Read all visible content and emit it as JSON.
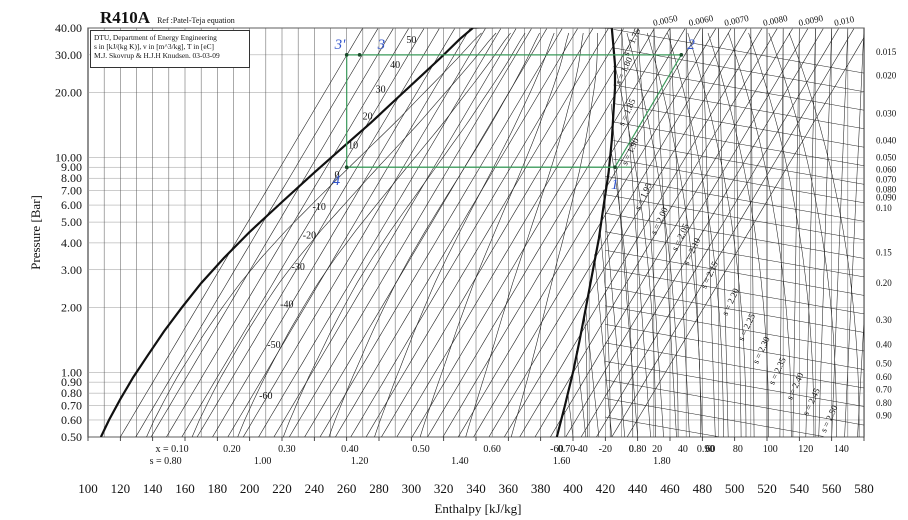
{
  "chart_data": {
    "type": "line",
    "title": "R410A",
    "subtitle": "Ref :Patel-Teja equation",
    "info_lines": [
      "DTU, Department of Energy Engineering",
      "s in [kJ/(kg K)], v in [m^3/kg], T in [eC]",
      "M.J. Skovrup & H.J.H Knudsen. 03-03-09"
    ],
    "xlabel": "Enthalpy [kJ/kg]",
    "ylabel": "Pressure [Bar]",
    "xlim": [
      100,
      580
    ],
    "ylim": [
      0.5,
      40
    ],
    "yscale": "log",
    "x_ticks": [
      100,
      120,
      140,
      160,
      180,
      200,
      220,
      240,
      260,
      280,
      300,
      320,
      340,
      360,
      380,
      400,
      420,
      440,
      460,
      480,
      500,
      520,
      540,
      560,
      580
    ],
    "y_ticks": [
      0.5,
      0.6,
      0.7,
      0.8,
      0.9,
      1.0,
      2.0,
      3.0,
      4.0,
      5.0,
      6.0,
      7.0,
      8.0,
      9.0,
      10.0,
      20.0,
      30.0,
      40.0
    ],
    "y_tick_labels": [
      "0.50",
      "0.60",
      "0.70",
      "0.80",
      "0.90",
      "1.00",
      "2.00",
      "3.00",
      "4.00",
      "5.00",
      "6.00",
      "7.00",
      "8.00",
      "9.00",
      "10.00",
      "20.00",
      "30.00",
      "40.00"
    ],
    "saturation_liquid": {
      "h": [
        108,
        113,
        120,
        128,
        137,
        147,
        158,
        170,
        184,
        200,
        220,
        240,
        258,
        275,
        290,
        305,
        318,
        330,
        338
      ],
      "p": [
        0.5,
        0.6,
        0.75,
        0.95,
        1.2,
        1.55,
        2.0,
        2.6,
        3.4,
        4.5,
        6.2,
        8.5,
        11.2,
        14.5,
        18.5,
        23.5,
        29.0,
        35.5,
        40.0
      ]
    },
    "saturation_vapor": {
      "h": [
        390,
        395,
        400,
        404,
        408,
        412,
        416,
        419,
        422,
        424,
        425,
        426,
        426,
        425,
        424
      ],
      "p": [
        0.5,
        0.7,
        1.0,
        1.4,
        2.0,
        2.9,
        4.2,
        6.0,
        8.5,
        12.0,
        16.0,
        21.0,
        27.0,
        33.0,
        40.0
      ]
    },
    "isotherm_labels": [
      {
        "label": "50",
        "h": 300,
        "p": 34
      },
      {
        "label": "40",
        "h": 290,
        "p": 26
      },
      {
        "label": "30",
        "h": 281,
        "p": 20
      },
      {
        "label": "20",
        "h": 273,
        "p": 15
      },
      {
        "label": "10",
        "h": 264,
        "p": 11
      },
      {
        "label": "0",
        "h": 254,
        "p": 8
      },
      {
        "label": "-10",
        "h": 243,
        "p": 5.7
      },
      {
        "label": "-20",
        "h": 237,
        "p": 4.2
      },
      {
        "label": "-30",
        "h": 230,
        "p": 3
      },
      {
        "label": "-40",
        "h": 223,
        "p": 2
      },
      {
        "label": "-50",
        "h": 215,
        "p": 1.3
      },
      {
        "label": "-60",
        "h": 210,
        "p": 0.75
      }
    ],
    "quality_labels": [
      "x = 0.10",
      "0.20",
      "0.30",
      "0.40",
      "0.50",
      "0.60",
      "0.70",
      "0.80",
      "0.90"
    ],
    "quality_h": [
      152,
      189,
      223,
      262,
      306,
      350,
      396,
      440,
      482
    ],
    "liquid_entropy_labels": [
      "s = 0.80",
      "1.00",
      "1.20",
      "1.40",
      "1.60",
      "1.80"
    ],
    "liquid_entropy_h": [
      148,
      208,
      268,
      330,
      393,
      455
    ],
    "vapor_temp_labels": [
      "-60",
      "-40",
      "-20",
      "0",
      "20",
      "40",
      "60",
      "80",
      "100",
      "120",
      "140"
    ],
    "vapor_temp_h": [
      390,
      405,
      420,
      436,
      452,
      468,
      485,
      502,
      522,
      544,
      566
    ],
    "vapor_entropy_labels": [
      {
        "label": "s = 1.75",
        "h": 438,
        "p": 34
      },
      {
        "label": "s = 1.80",
        "h": 433,
        "p": 25
      },
      {
        "label": "s = 1.85",
        "h": 435,
        "p": 16
      },
      {
        "label": "s = 1.90",
        "h": 437,
        "p": 10.5
      },
      {
        "label": "s = 1.95",
        "h": 445,
        "p": 6.5
      },
      {
        "label": "s = 2.00",
        "h": 455,
        "p": 5
      },
      {
        "label": "s = 2.05",
        "h": 468,
        "p": 4.2
      },
      {
        "label": "s = 2.10",
        "h": 475,
        "p": 3.6
      },
      {
        "label": "s = 2.15",
        "h": 486,
        "p": 2.8
      },
      {
        "label": "s = 2.20",
        "h": 499,
        "p": 2.1
      },
      {
        "label": "s = 2.25",
        "h": 509,
        "p": 1.6
      },
      {
        "label": "s = 2.30",
        "h": 518,
        "p": 1.25
      },
      {
        "label": "s = 2.35",
        "h": 528,
        "p": 1.0
      },
      {
        "label": "s = 2.40",
        "h": 539,
        "p": 0.85
      },
      {
        "label": "s = 2.45",
        "h": 549,
        "p": 0.72
      },
      {
        "label": "s = 2.50",
        "h": 560,
        "p": 0.6
      }
    ],
    "volume_top_labels": [
      "0.0050",
      "0.0060",
      "0.0070",
      "0.0080",
      "0.0090",
      "0.010"
    ],
    "volume_top_h": [
      450,
      472,
      494,
      518,
      540,
      562
    ],
    "volume_right_labels": [
      "0.015",
      "0.020",
      "0.030",
      "0.040",
      "0.050",
      "0.060",
      "0.070",
      "0.080",
      "0.090",
      "0.10",
      "0.15",
      "0.20",
      "0.30",
      "0.40",
      "0.50",
      "0.60",
      "0.70",
      "0.80",
      "0.90"
    ],
    "volume_right_p": [
      31,
      24,
      16,
      12,
      10,
      8.8,
      7.9,
      7.1,
      6.5,
      5.8,
      3.6,
      2.6,
      1.75,
      1.35,
      1.1,
      0.95,
      0.83,
      0.72,
      0.63
    ],
    "cycle_points": [
      {
        "label": "1",
        "h": 426,
        "p": 9.0
      },
      {
        "label": "2",
        "h": 467,
        "p": 30.0
      },
      {
        "label": "3",
        "h": 268,
        "p": 30.0
      },
      {
        "label": "3'",
        "h": 260,
        "p": 30.0
      },
      {
        "label": "4",
        "h": 260,
        "p": 9.0
      }
    ],
    "grid": true
  }
}
